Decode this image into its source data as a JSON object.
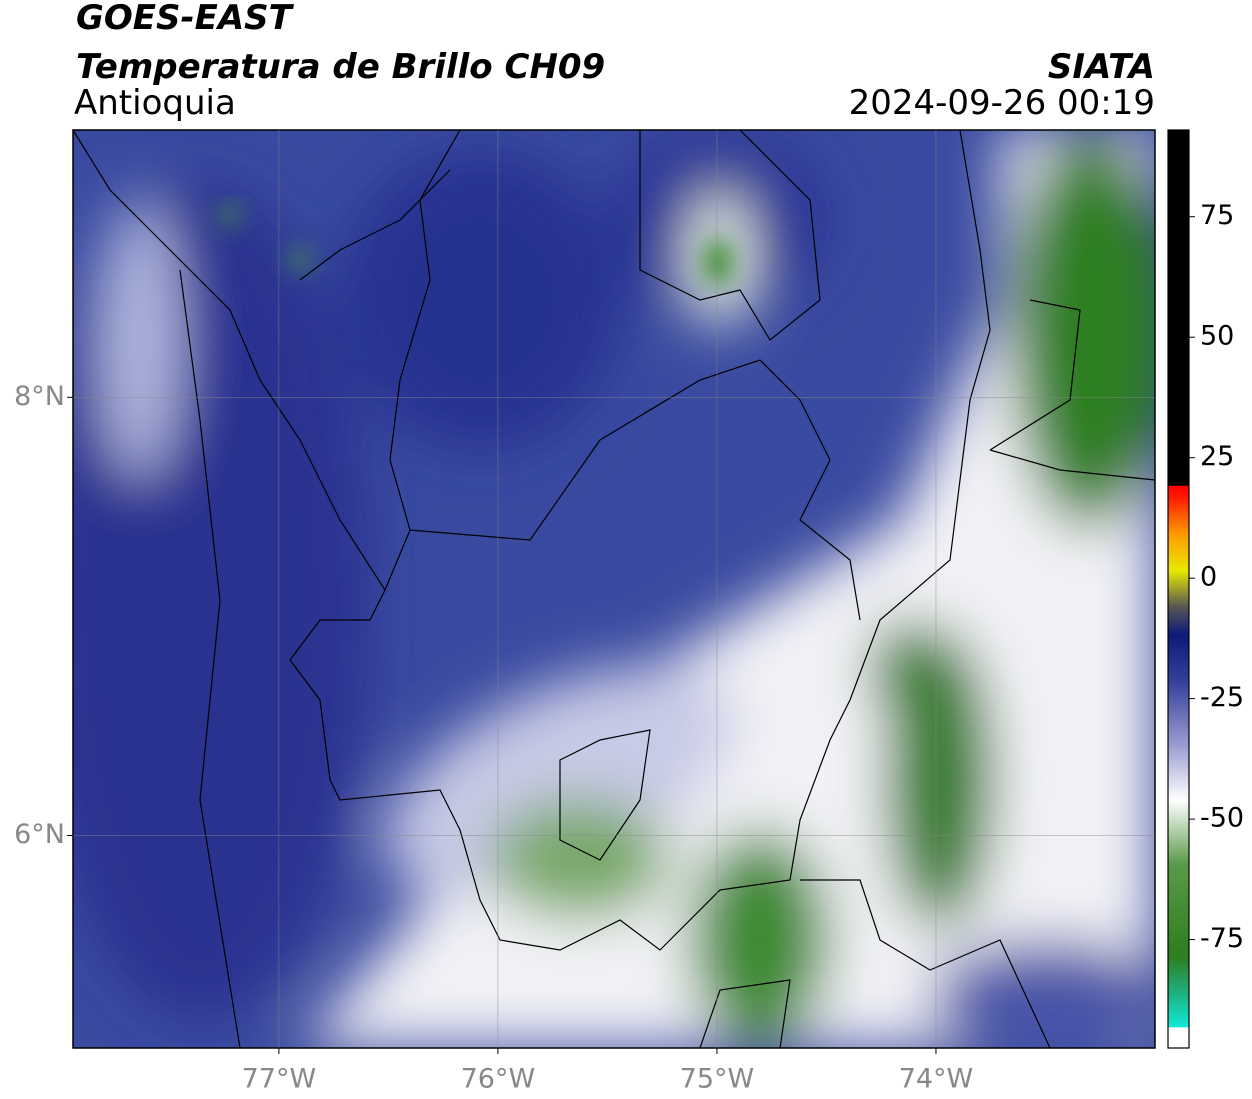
{
  "header": {
    "title": "GOES-EAST",
    "subtitle": "Temperatura de Brillo CH09",
    "region": "Antioquia",
    "source": "SIATA",
    "timestamp": "2024-09-26 00:19"
  },
  "map": {
    "xlim": [
      -77.94,
      -73.0
    ],
    "ylim": [
      5.03,
      9.22
    ],
    "xticks": [
      {
        "value": -77,
        "label": "77°W"
      },
      {
        "value": -76,
        "label": "76°W"
      },
      {
        "value": -75,
        "label": "75°W"
      },
      {
        "value": -74,
        "label": "74°W"
      }
    ],
    "yticks": [
      {
        "value": 8,
        "label": "8°N"
      },
      {
        "value": 6,
        "label": "6°N"
      }
    ],
    "grid": true
  },
  "colorbar": {
    "lim": [
      -97.5,
      93
    ],
    "ticks": [
      75,
      50,
      25,
      0,
      -25,
      -50,
      -75
    ]
  }
}
